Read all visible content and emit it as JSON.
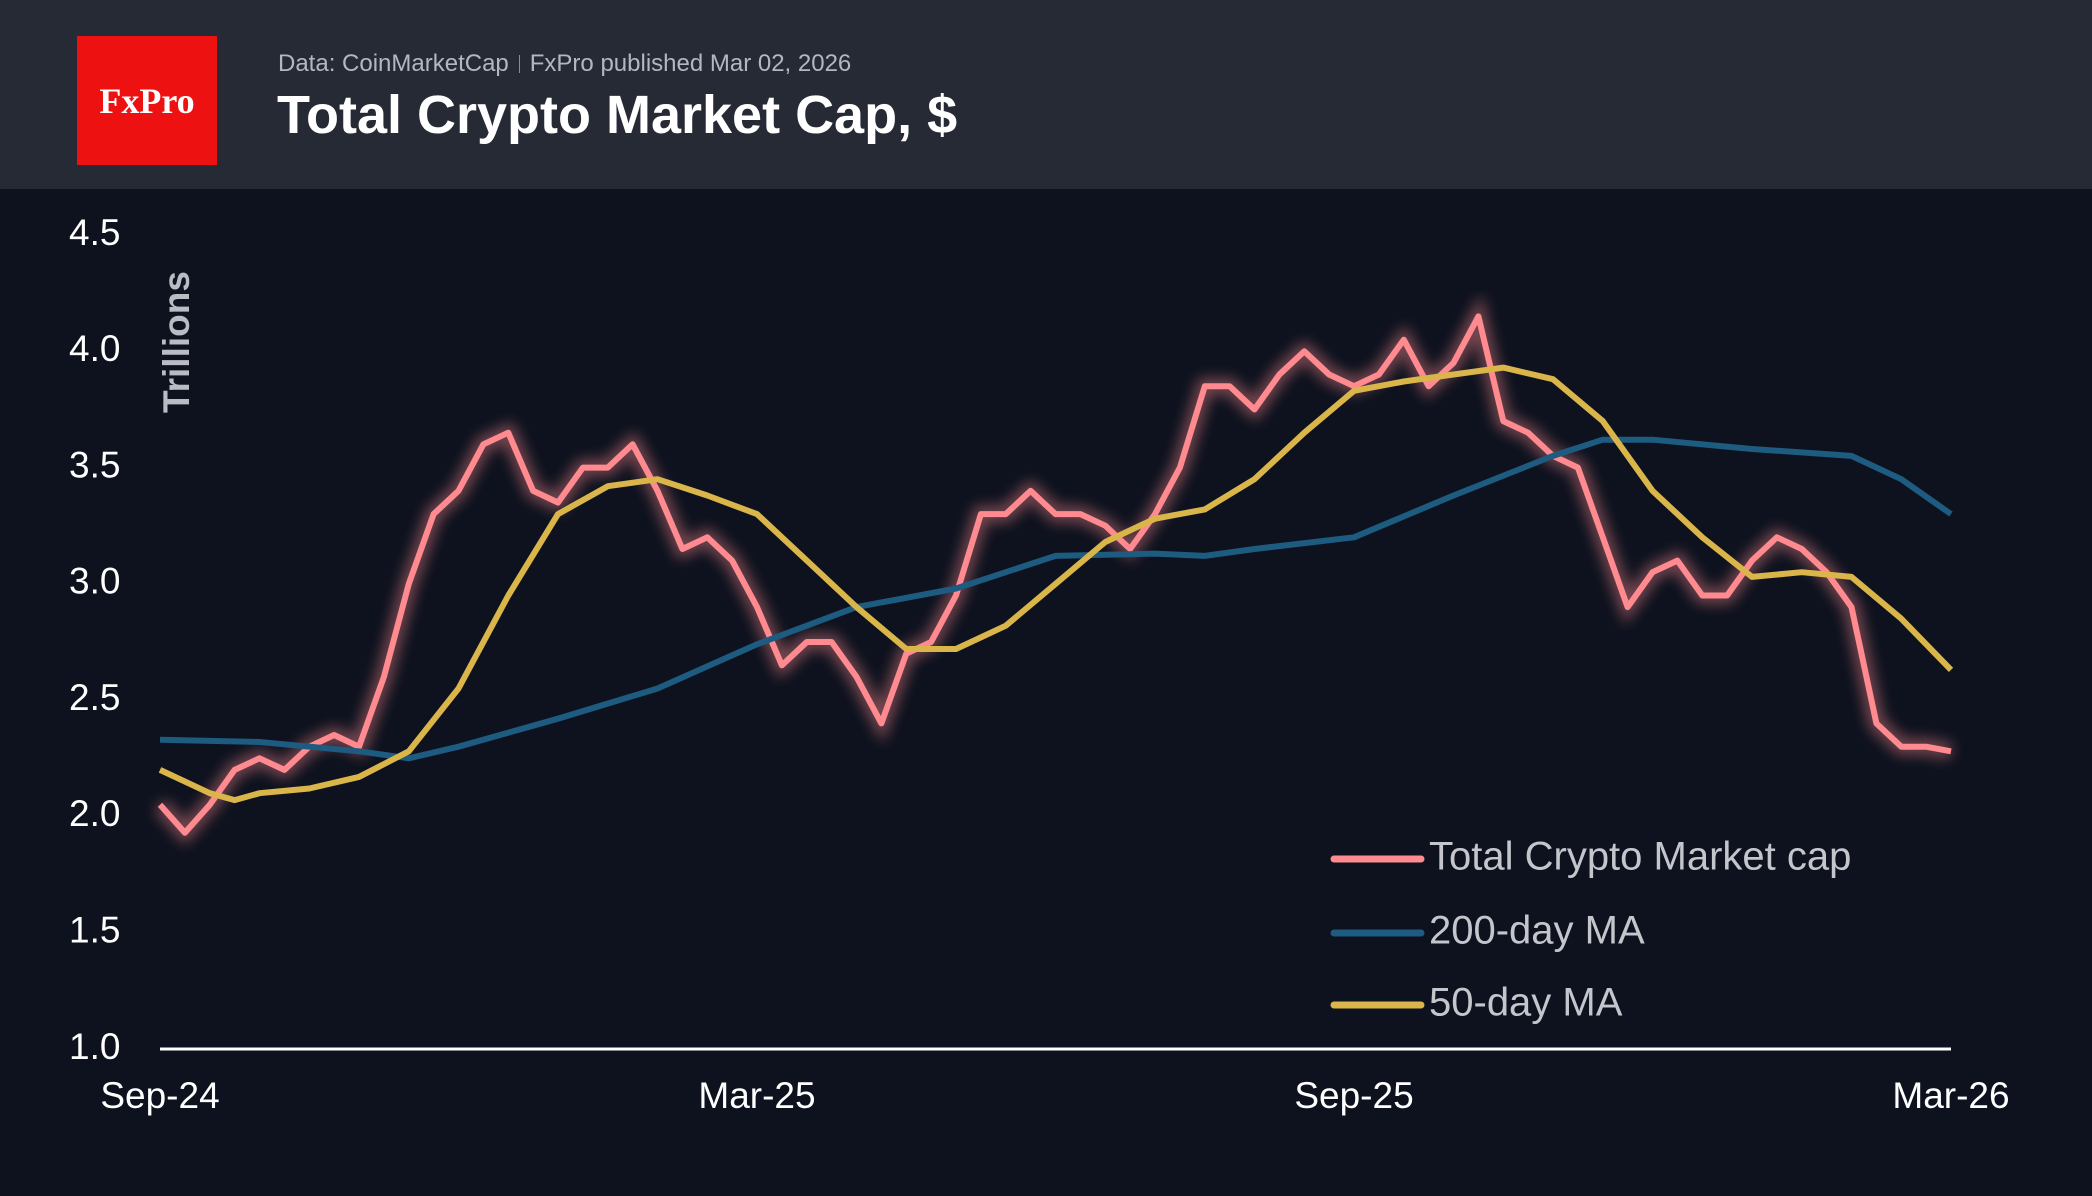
{
  "header": {
    "logo": "FxPro",
    "source": "Data: CoinMarketCap",
    "published": "FxPro published Mar 02, 2026"
  },
  "chart_data": {
    "type": "line",
    "title": "Total Crypto Market Cap, $",
    "y_label": "Trillions",
    "xlim": [
      0,
      18
    ],
    "xticks": [
      {
        "value": 0,
        "label": "Sep-24"
      },
      {
        "value": 6,
        "label": "Mar-25"
      },
      {
        "value": 12,
        "label": "Sep-25"
      },
      {
        "value": 18,
        "label": "Mar-26"
      }
    ],
    "ylim": [
      1.0,
      4.5
    ],
    "yticks": [
      {
        "value": 1.0,
        "label": "1.0"
      },
      1.5,
      {
        "value": 2.0,
        "label": "2.0"
      },
      2.5,
      {
        "value": 3.0,
        "label": "3.0"
      },
      3.5,
      {
        "value": 4.0,
        "label": "4.0"
      },
      4.5
    ],
    "legend": "lower right",
    "series": [
      {
        "name": "Total Crypto Market cap",
        "color": "#ff8a8f",
        "glow": true,
        "x": [
          0,
          0.25,
          0.5,
          0.75,
          1,
          1.25,
          1.5,
          1.75,
          2,
          2.25,
          2.5,
          2.75,
          3,
          3.25,
          3.5,
          3.75,
          4,
          4.25,
          4.5,
          4.75,
          5,
          5.25,
          5.5,
          5.75,
          6,
          6.25,
          6.5,
          6.75,
          7,
          7.25,
          7.5,
          7.75,
          8,
          8.25,
          8.5,
          8.75,
          9,
          9.25,
          9.5,
          9.75,
          10,
          10.25,
          10.5,
          10.75,
          11,
          11.25,
          11.5,
          11.75,
          12,
          12.25,
          12.5,
          12.75,
          13,
          13.25,
          13.5,
          13.75,
          14,
          14.25,
          14.5,
          14.75,
          15,
          15.25,
          15.5,
          15.75,
          16,
          16.25,
          16.5,
          16.75,
          17,
          17.25,
          17.5,
          17.75,
          18
        ],
        "values": [
          2.05,
          1.93,
          2.05,
          2.2,
          2.25,
          2.2,
          2.3,
          2.35,
          2.3,
          2.6,
          3.0,
          3.3,
          3.4,
          3.6,
          3.65,
          3.4,
          3.35,
          3.5,
          3.5,
          3.6,
          3.4,
          3.15,
          3.2,
          3.1,
          2.9,
          2.65,
          2.75,
          2.75,
          2.6,
          2.4,
          2.7,
          2.75,
          2.95,
          3.3,
          3.3,
          3.4,
          3.3,
          3.3,
          3.25,
          3.15,
          3.3,
          3.5,
          3.85,
          3.85,
          3.75,
          3.9,
          4.0,
          3.9,
          3.85,
          3.9,
          4.05,
          3.85,
          3.95,
          4.15,
          3.7,
          3.65,
          3.55,
          3.5,
          3.2,
          2.9,
          3.05,
          3.1,
          2.95,
          2.95,
          3.1,
          3.2,
          3.15,
          3.05,
          2.9,
          2.4,
          2.3,
          2.3,
          2.28
        ]
      },
      {
        "name": "200-day MA",
        "color": "#1d5b80",
        "x": [
          0,
          1,
          2,
          2.5,
          3,
          4,
          5,
          6,
          7,
          8,
          9,
          10,
          10.5,
          11,
          12,
          13,
          14,
          14.5,
          15,
          16,
          17,
          17.5,
          18
        ],
        "values": [
          2.33,
          2.32,
          2.28,
          2.25,
          2.3,
          2.42,
          2.55,
          2.74,
          2.9,
          2.98,
          3.12,
          3.13,
          3.12,
          3.15,
          3.2,
          3.38,
          3.55,
          3.62,
          3.62,
          3.58,
          3.55,
          3.45,
          3.3
        ]
      },
      {
        "name": "50-day MA",
        "color": "#d9b54a",
        "x": [
          0,
          0.5,
          0.75,
          1,
          1.5,
          2,
          2.5,
          3,
          3.5,
          4,
          4.5,
          5,
          5.5,
          6,
          6.5,
          7,
          7.5,
          8,
          8.5,
          9,
          9.5,
          10,
          10.5,
          11,
          11.5,
          12,
          12.5,
          13,
          13.5,
          14,
          14.5,
          15,
          15.5,
          16,
          16.5,
          17,
          17.5,
          18
        ],
        "values": [
          2.2,
          2.1,
          2.07,
          2.1,
          2.12,
          2.17,
          2.28,
          2.55,
          2.95,
          3.3,
          3.42,
          3.45,
          3.38,
          3.3,
          3.1,
          2.9,
          2.72,
          2.72,
          2.82,
          3.0,
          3.18,
          3.28,
          3.32,
          3.45,
          3.65,
          3.83,
          3.87,
          3.9,
          3.93,
          3.88,
          3.7,
          3.4,
          3.2,
          3.03,
          3.05,
          3.03,
          2.85,
          2.63
        ]
      }
    ]
  }
}
